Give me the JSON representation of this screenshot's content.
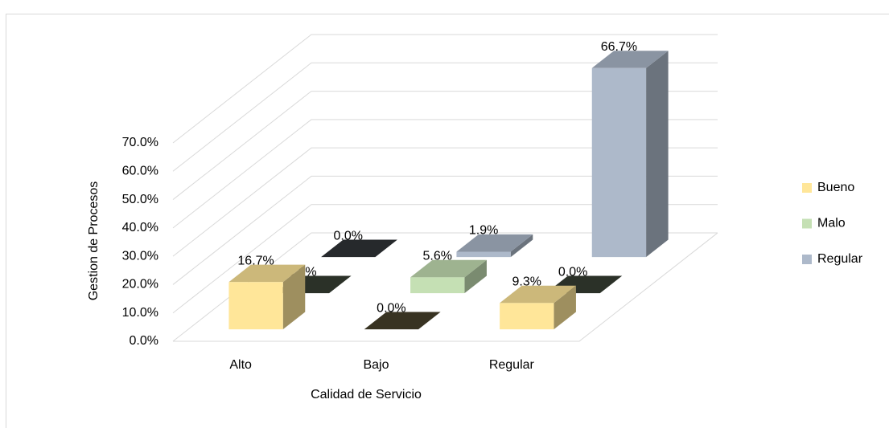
{
  "chart_data": {
    "type": "bar3d",
    "x_label": "Calidad de Servicio",
    "y_label": "Gestion de Procesos",
    "categories": [
      "Alto",
      "Bajo",
      "Regular"
    ],
    "series": [
      {
        "name": "Bueno",
        "color": "#ffe699",
        "values": [
          16.7,
          0.0,
          9.3
        ],
        "value_labels": [
          "16.7%",
          "0.0%",
          "9.3%"
        ]
      },
      {
        "name": "Malo",
        "color": "#c5e0b4",
        "values": [
          0.0,
          5.6,
          0.0
        ],
        "value_labels": [
          "0.0%",
          "5.6%",
          "0.0%"
        ]
      },
      {
        "name": "Regular",
        "color": "#adb9ca",
        "values": [
          0.0,
          1.9,
          66.7
        ],
        "value_labels": [
          "0.0%",
          "1.9%",
          "66.7%"
        ]
      }
    ],
    "ylim": [
      0,
      70
    ],
    "yticks": [
      {
        "value": 0,
        "label": "0.0%"
      },
      {
        "value": 10,
        "label": "10.0%"
      },
      {
        "value": 20,
        "label": "20.0%"
      },
      {
        "value": 30,
        "label": "30.0%"
      },
      {
        "value": 40,
        "label": "40.0%"
      },
      {
        "value": 50,
        "label": "50.0%"
      },
      {
        "value": 60,
        "label": "60.0%"
      },
      {
        "value": 70,
        "label": "70.0%"
      }
    ],
    "grid": true,
    "legend": "right"
  }
}
